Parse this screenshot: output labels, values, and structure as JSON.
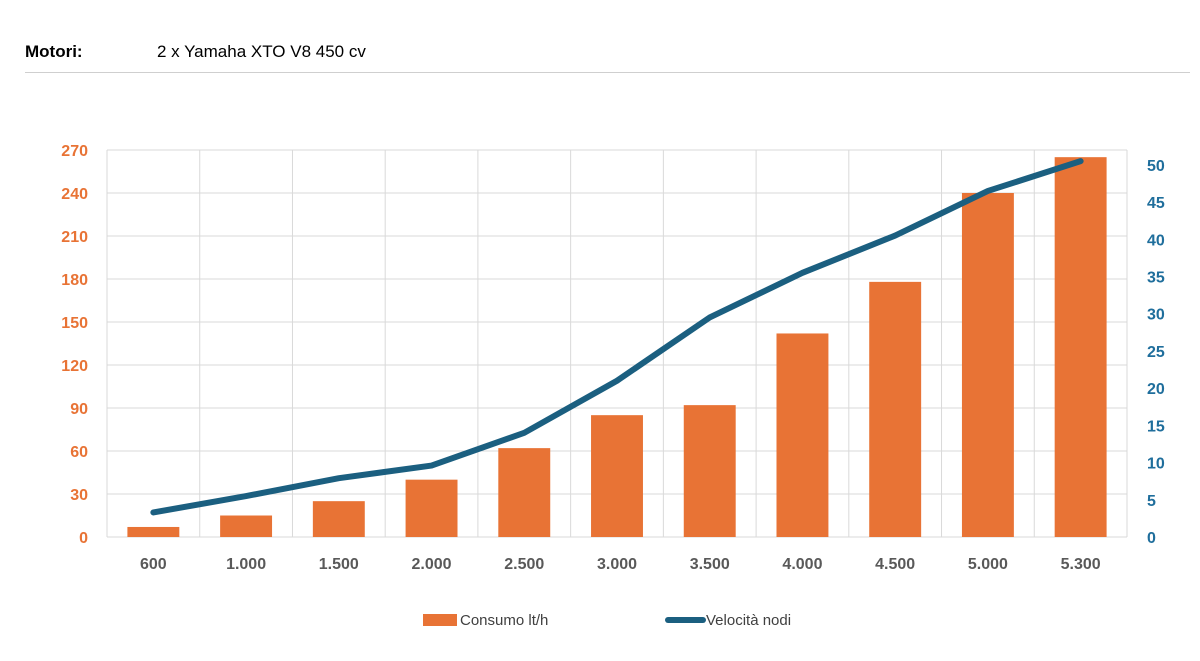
{
  "header": {
    "label": "Motori:",
    "value": "2 x Yamaha XTO V8 450 cv"
  },
  "colors": {
    "bar": "#E87335",
    "line": "#1B5F80",
    "grid": "#d9d9d9",
    "left_axis": "#E87335",
    "right_axis": "#1F6E9C"
  },
  "chart_data": {
    "type": "bar",
    "categories": [
      "600",
      "1.000",
      "1.500",
      "2.000",
      "2.500",
      "3.000",
      "3.500",
      "4.000",
      "4.500",
      "5.000",
      "5.300"
    ],
    "series": [
      {
        "name": "Consumo lt/h",
        "type": "bar",
        "axis": "left",
        "values": [
          7,
          15,
          25,
          40,
          62,
          85,
          92,
          142,
          178,
          240,
          265
        ]
      },
      {
        "name": "Velocità nodi",
        "type": "line",
        "axis": "right",
        "values": [
          3.3,
          5.5,
          7.9,
          9.6,
          14.0,
          21.0,
          29.5,
          35.5,
          40.5,
          46.5,
          50.5
        ]
      }
    ],
    "y_left": {
      "min": 0,
      "max": 270,
      "ticks": [
        "0",
        "30",
        "60",
        "90",
        "120",
        "150",
        "180",
        "210",
        "240",
        "270"
      ]
    },
    "y_right": {
      "min": 0,
      "max": 52,
      "ticks": [
        "0",
        "5",
        "10",
        "15",
        "20",
        "25",
        "30",
        "35",
        "40",
        "45",
        "50"
      ]
    },
    "grid": true,
    "legend": "bottom"
  }
}
